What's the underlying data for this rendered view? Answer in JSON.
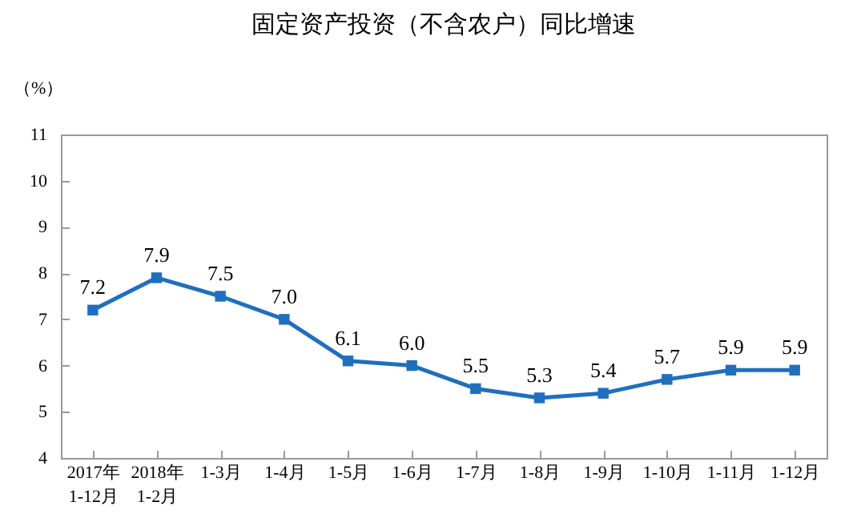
{
  "chart_data": {
    "type": "line",
    "title": "固定资产投资（不含农户）同比增速",
    "ylabel": "（%）",
    "categories": [
      "2017年\n1-12月",
      "2018年\n1-2月",
      "1-3月",
      "1-4月",
      "1-5月",
      "1-6月",
      "1-7月",
      "1-8月",
      "1-9月",
      "1-10月",
      "1-11月",
      "1-12月"
    ],
    "series": [
      {
        "color": "#1f6fbf",
        "values": [
          7.2,
          7.9,
          7.5,
          7.0,
          6.1,
          6.0,
          5.5,
          5.3,
          5.4,
          5.7,
          5.9,
          5.9
        ],
        "value_labels": [
          "7.2",
          "7.9",
          "7.5",
          "7.0",
          "6.1",
          "6.0",
          "5.5",
          "5.3",
          "5.4",
          "5.7",
          "5.9",
          "5.9"
        ]
      }
    ],
    "ylim": [
      4,
      11
    ],
    "yticks": [
      4,
      5,
      6,
      7,
      8,
      9,
      10,
      11
    ],
    "grid": false,
    "legend": false,
    "marker": "square",
    "line_style": "solid"
  }
}
